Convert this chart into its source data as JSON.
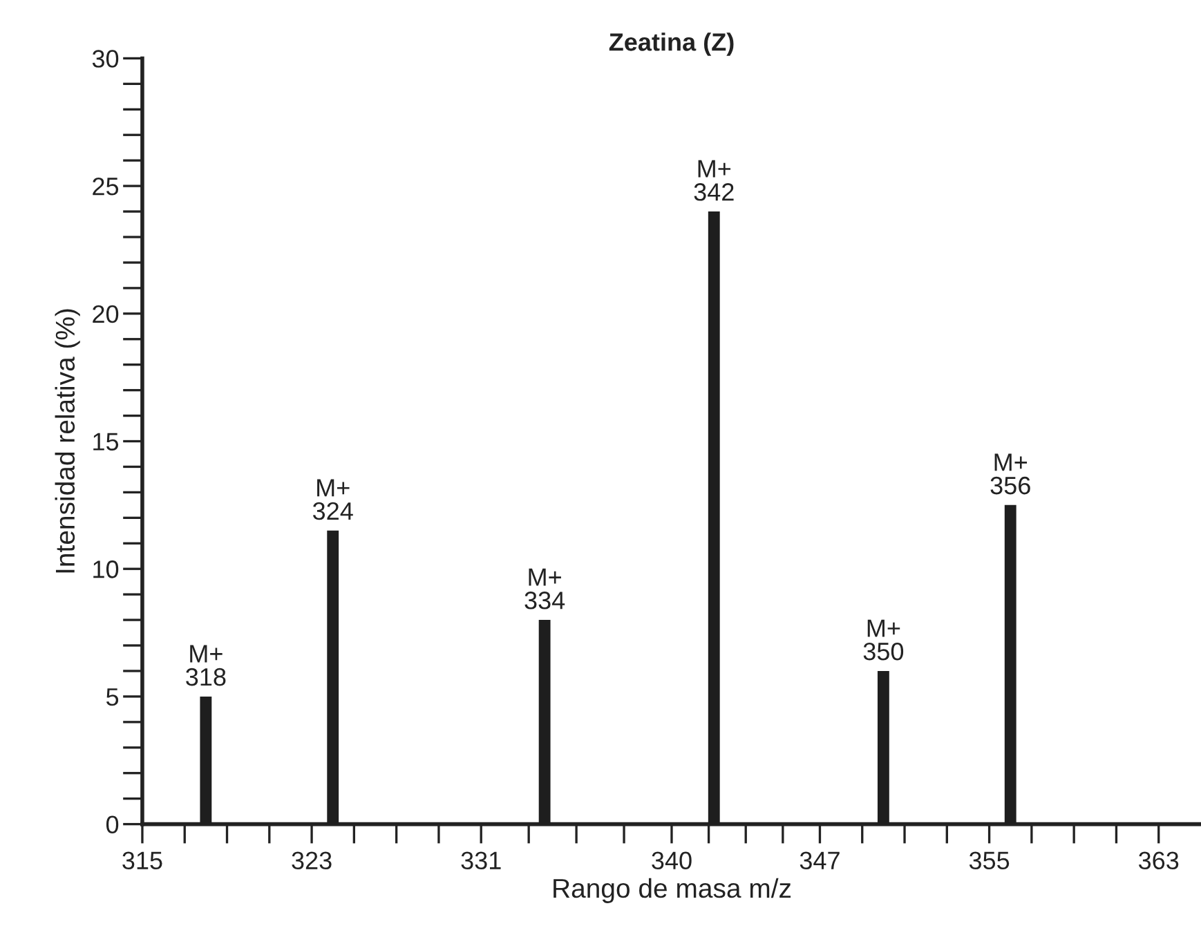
{
  "chart_data": {
    "type": "bar",
    "title": "Zeatina (Z)",
    "xlabel": "Rango de masa m/z",
    "ylabel": "Intensidad relativa (%)",
    "x": [
      318,
      324,
      334,
      342,
      350,
      356
    ],
    "values": [
      5,
      11.5,
      8,
      24,
      6,
      12.5
    ],
    "value_labels": [
      "M+\n318",
      "M+\n324",
      "M+\n334",
      "M+\n342",
      "M+\n350",
      "M+\n356"
    ],
    "color": "#1e1e1e",
    "xlim": [
      315,
      365
    ],
    "xticks": [
      315,
      {
        "value": 317,
        "label": null
      },
      {
        "value": 319,
        "label": null
      },
      {
        "value": 321,
        "label": null
      },
      323,
      {
        "value": 325,
        "label": null
      },
      {
        "value": 327,
        "label": null
      },
      {
        "value": 329,
        "label": null
      },
      331,
      {
        "value": 333.25,
        "label": null
      },
      {
        "value": 335.5,
        "label": null
      },
      {
        "value": 337.75,
        "label": null
      },
      340,
      {
        "value": 341.75,
        "label": null
      },
      {
        "value": 343.5,
        "label": null
      },
      {
        "value": 345.25,
        "label": null
      },
      347,
      {
        "value": 349,
        "label": null
      },
      {
        "value": 351,
        "label": null
      },
      {
        "value": 353,
        "label": null
      },
      355,
      {
        "value": 357,
        "label": null
      },
      {
        "value": 359,
        "label": null
      },
      {
        "value": 361,
        "label": null
      },
      363
    ],
    "ylim": [
      0,
      30
    ],
    "yticks": [
      0,
      {
        "value": 1,
        "label": null
      },
      {
        "value": 2,
        "label": null
      },
      {
        "value": 3,
        "label": null
      },
      {
        "value": 4,
        "label": null
      },
      5,
      {
        "value": 6,
        "label": null
      },
      {
        "value": 7,
        "label": null
      },
      {
        "value": 8,
        "label": null
      },
      {
        "value": 9,
        "label": null
      },
      10,
      {
        "value": 11,
        "label": null
      },
      {
        "value": 12,
        "label": null
      },
      {
        "value": 13,
        "label": null
      },
      {
        "value": 14,
        "label": null
      },
      15,
      {
        "value": 16,
        "label": null
      },
      {
        "value": 17,
        "label": null
      },
      {
        "value": 18,
        "label": null
      },
      {
        "value": 19,
        "label": null
      },
      20,
      {
        "value": 21,
        "label": null
      },
      {
        "value": 22,
        "label": null
      },
      {
        "value": 23,
        "label": null
      },
      {
        "value": 24,
        "label": null
      },
      25,
      {
        "value": 26,
        "label": null
      },
      {
        "value": 27,
        "label": null
      },
      {
        "value": 28,
        "label": null
      },
      {
        "value": 29,
        "label": null
      },
      30
    ],
    "grid": false,
    "legend": false
  }
}
